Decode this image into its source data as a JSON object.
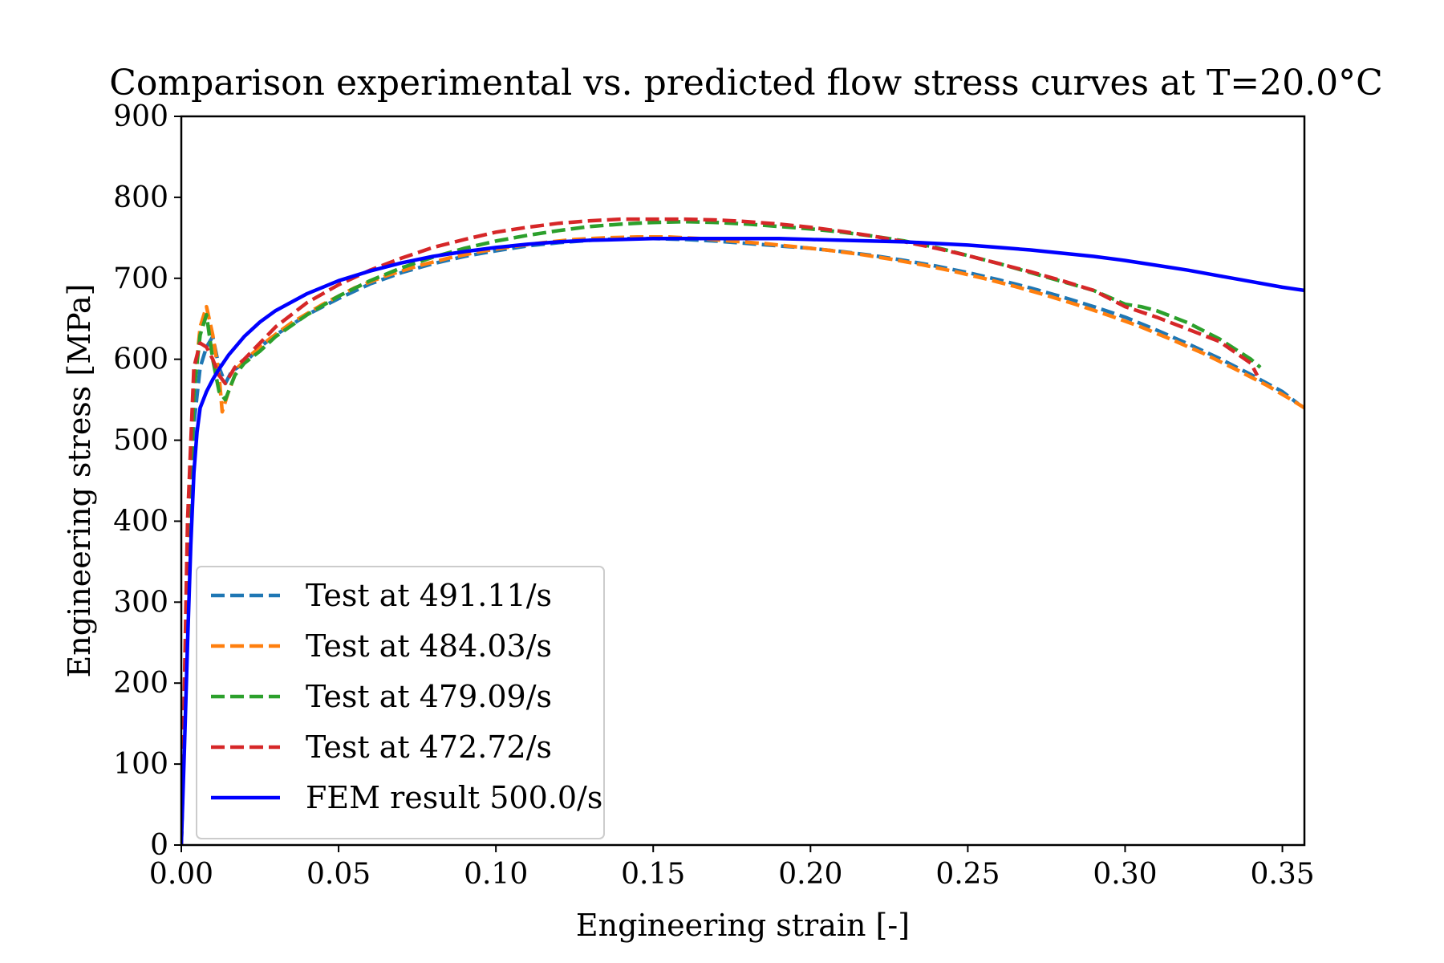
{
  "chart_data": {
    "type": "line",
    "title": "Comparison experimental vs. predicted flow stress curves at T=20.0°C",
    "xlabel": "Engineering strain [-]",
    "ylabel": "Engineering stress [MPa]",
    "xlim": [
      0,
      0.357
    ],
    "ylim": [
      0,
      900
    ],
    "xticks": [
      0.0,
      0.05,
      0.1,
      0.15,
      0.2,
      0.25,
      0.3,
      0.35
    ],
    "xtick_labels": [
      "0.00",
      "0.05",
      "0.10",
      "0.15",
      "0.20",
      "0.25",
      "0.30",
      "0.35"
    ],
    "yticks": [
      0,
      100,
      200,
      300,
      400,
      500,
      600,
      700,
      800,
      900
    ],
    "ytick_labels": [
      "0",
      "100",
      "200",
      "300",
      "400",
      "500",
      "600",
      "700",
      "800",
      "900"
    ],
    "grid": false,
    "legend_position": "lower-left",
    "series": [
      {
        "name": "Test at 491.11/s",
        "color": "#1f77b4",
        "style": "dashed",
        "x": [
          0.0,
          0.002,
          0.004,
          0.006,
          0.008,
          0.01,
          0.012,
          0.014,
          0.016,
          0.02,
          0.025,
          0.03,
          0.04,
          0.05,
          0.06,
          0.07,
          0.08,
          0.09,
          0.1,
          0.11,
          0.12,
          0.13,
          0.14,
          0.15,
          0.16,
          0.17,
          0.18,
          0.19,
          0.2,
          0.21,
          0.22,
          0.23,
          0.24,
          0.25,
          0.26,
          0.27,
          0.28,
          0.29,
          0.3,
          0.31,
          0.32,
          0.33,
          0.34,
          0.35,
          0.355
        ],
        "y": [
          0,
          300,
          520,
          590,
          615,
          628,
          590,
          570,
          585,
          595,
          615,
          630,
          655,
          675,
          693,
          707,
          718,
          727,
          734,
          740,
          744,
          747,
          749,
          749,
          748,
          746,
          743,
          740,
          737,
          733,
          728,
          722,
          715,
          707,
          698,
          688,
          677,
          665,
          652,
          636,
          619,
          601,
          581,
          560,
          545
        ]
      },
      {
        "name": "Test at 484.03/s",
        "color": "#ff7f0e",
        "style": "dashed",
        "x": [
          0.0,
          0.002,
          0.004,
          0.006,
          0.008,
          0.01,
          0.012,
          0.013,
          0.015,
          0.018,
          0.022,
          0.028,
          0.035,
          0.045,
          0.055,
          0.065,
          0.075,
          0.085,
          0.095,
          0.105,
          0.115,
          0.125,
          0.135,
          0.145,
          0.155,
          0.165,
          0.175,
          0.185,
          0.195,
          0.205,
          0.215,
          0.225,
          0.235,
          0.245,
          0.255,
          0.265,
          0.275,
          0.285,
          0.295,
          0.305,
          0.315,
          0.325,
          0.335,
          0.345,
          0.352,
          0.357
        ],
        "y": [
          0,
          350,
          560,
          640,
          665,
          630,
          580,
          535,
          560,
          590,
          605,
          625,
          645,
          668,
          688,
          703,
          715,
          725,
          733,
          739,
          744,
          748,
          750,
          751,
          751,
          749,
          746,
          743,
          739,
          735,
          730,
          724,
          717,
          709,
          700,
          690,
          679,
          667,
          654,
          640,
          624,
          607,
          588,
          568,
          552,
          540
        ]
      },
      {
        "name": "Test at 479.09/s",
        "color": "#2ca02c",
        "style": "dashed",
        "x": [
          0.0,
          0.002,
          0.004,
          0.006,
          0.008,
          0.01,
          0.012,
          0.014,
          0.017,
          0.02,
          0.025,
          0.03,
          0.04,
          0.05,
          0.06,
          0.07,
          0.08,
          0.09,
          0.1,
          0.11,
          0.12,
          0.13,
          0.14,
          0.15,
          0.16,
          0.17,
          0.18,
          0.19,
          0.2,
          0.21,
          0.22,
          0.23,
          0.24,
          0.25,
          0.26,
          0.27,
          0.28,
          0.29,
          0.3,
          0.305,
          0.31,
          0.32,
          0.33,
          0.34,
          0.343
        ],
        "y": [
          0,
          300,
          560,
          630,
          655,
          600,
          560,
          550,
          580,
          595,
          610,
          628,
          655,
          678,
          697,
          713,
          726,
          737,
          746,
          753,
          759,
          764,
          767,
          769,
          770,
          769,
          767,
          764,
          761,
          757,
          752,
          746,
          738,
          728,
          718,
          707,
          696,
          685,
          668,
          665,
          660,
          645,
          625,
          600,
          590
        ]
      },
      {
        "name": "Test at 472.72/s",
        "color": "#d62728",
        "style": "dashed",
        "x": [
          0.0,
          0.002,
          0.004,
          0.006,
          0.008,
          0.01,
          0.012,
          0.014,
          0.017,
          0.02,
          0.025,
          0.03,
          0.04,
          0.05,
          0.06,
          0.07,
          0.08,
          0.09,
          0.1,
          0.11,
          0.12,
          0.13,
          0.14,
          0.15,
          0.16,
          0.17,
          0.18,
          0.19,
          0.2,
          0.21,
          0.22,
          0.23,
          0.24,
          0.25,
          0.26,
          0.27,
          0.28,
          0.29,
          0.3,
          0.31,
          0.32,
          0.33,
          0.34,
          0.342
        ],
        "y": [
          0,
          400,
          590,
          620,
          615,
          600,
          580,
          570,
          590,
          600,
          620,
          640,
          670,
          692,
          710,
          725,
          738,
          748,
          757,
          763,
          768,
          771,
          773,
          773,
          773,
          772,
          770,
          767,
          763,
          758,
          752,
          745,
          737,
          728,
          718,
          708,
          697,
          685,
          665,
          652,
          637,
          622,
          595,
          580
        ]
      },
      {
        "name": "FEM result 500.0/s",
        "color": "#0000ff",
        "style": "solid",
        "x": [
          0.0,
          0.001,
          0.002,
          0.003,
          0.004,
          0.005,
          0.006,
          0.008,
          0.01,
          0.012,
          0.015,
          0.02,
          0.025,
          0.03,
          0.04,
          0.05,
          0.06,
          0.07,
          0.08,
          0.09,
          0.1,
          0.11,
          0.12,
          0.13,
          0.14,
          0.15,
          0.16,
          0.17,
          0.18,
          0.19,
          0.2,
          0.21,
          0.22,
          0.23,
          0.24,
          0.25,
          0.26,
          0.27,
          0.28,
          0.29,
          0.3,
          0.31,
          0.32,
          0.33,
          0.34,
          0.35,
          0.357
        ],
        "y": [
          0,
          120,
          250,
          370,
          460,
          510,
          540,
          560,
          575,
          588,
          605,
          628,
          646,
          660,
          681,
          697,
          709,
          719,
          727,
          733,
          738,
          742,
          745,
          747,
          748,
          749,
          749,
          749,
          749,
          749,
          748,
          747,
          746,
          745,
          743,
          741,
          738,
          735,
          731,
          727,
          722,
          716,
          710,
          703,
          696,
          689,
          685
        ]
      }
    ]
  }
}
